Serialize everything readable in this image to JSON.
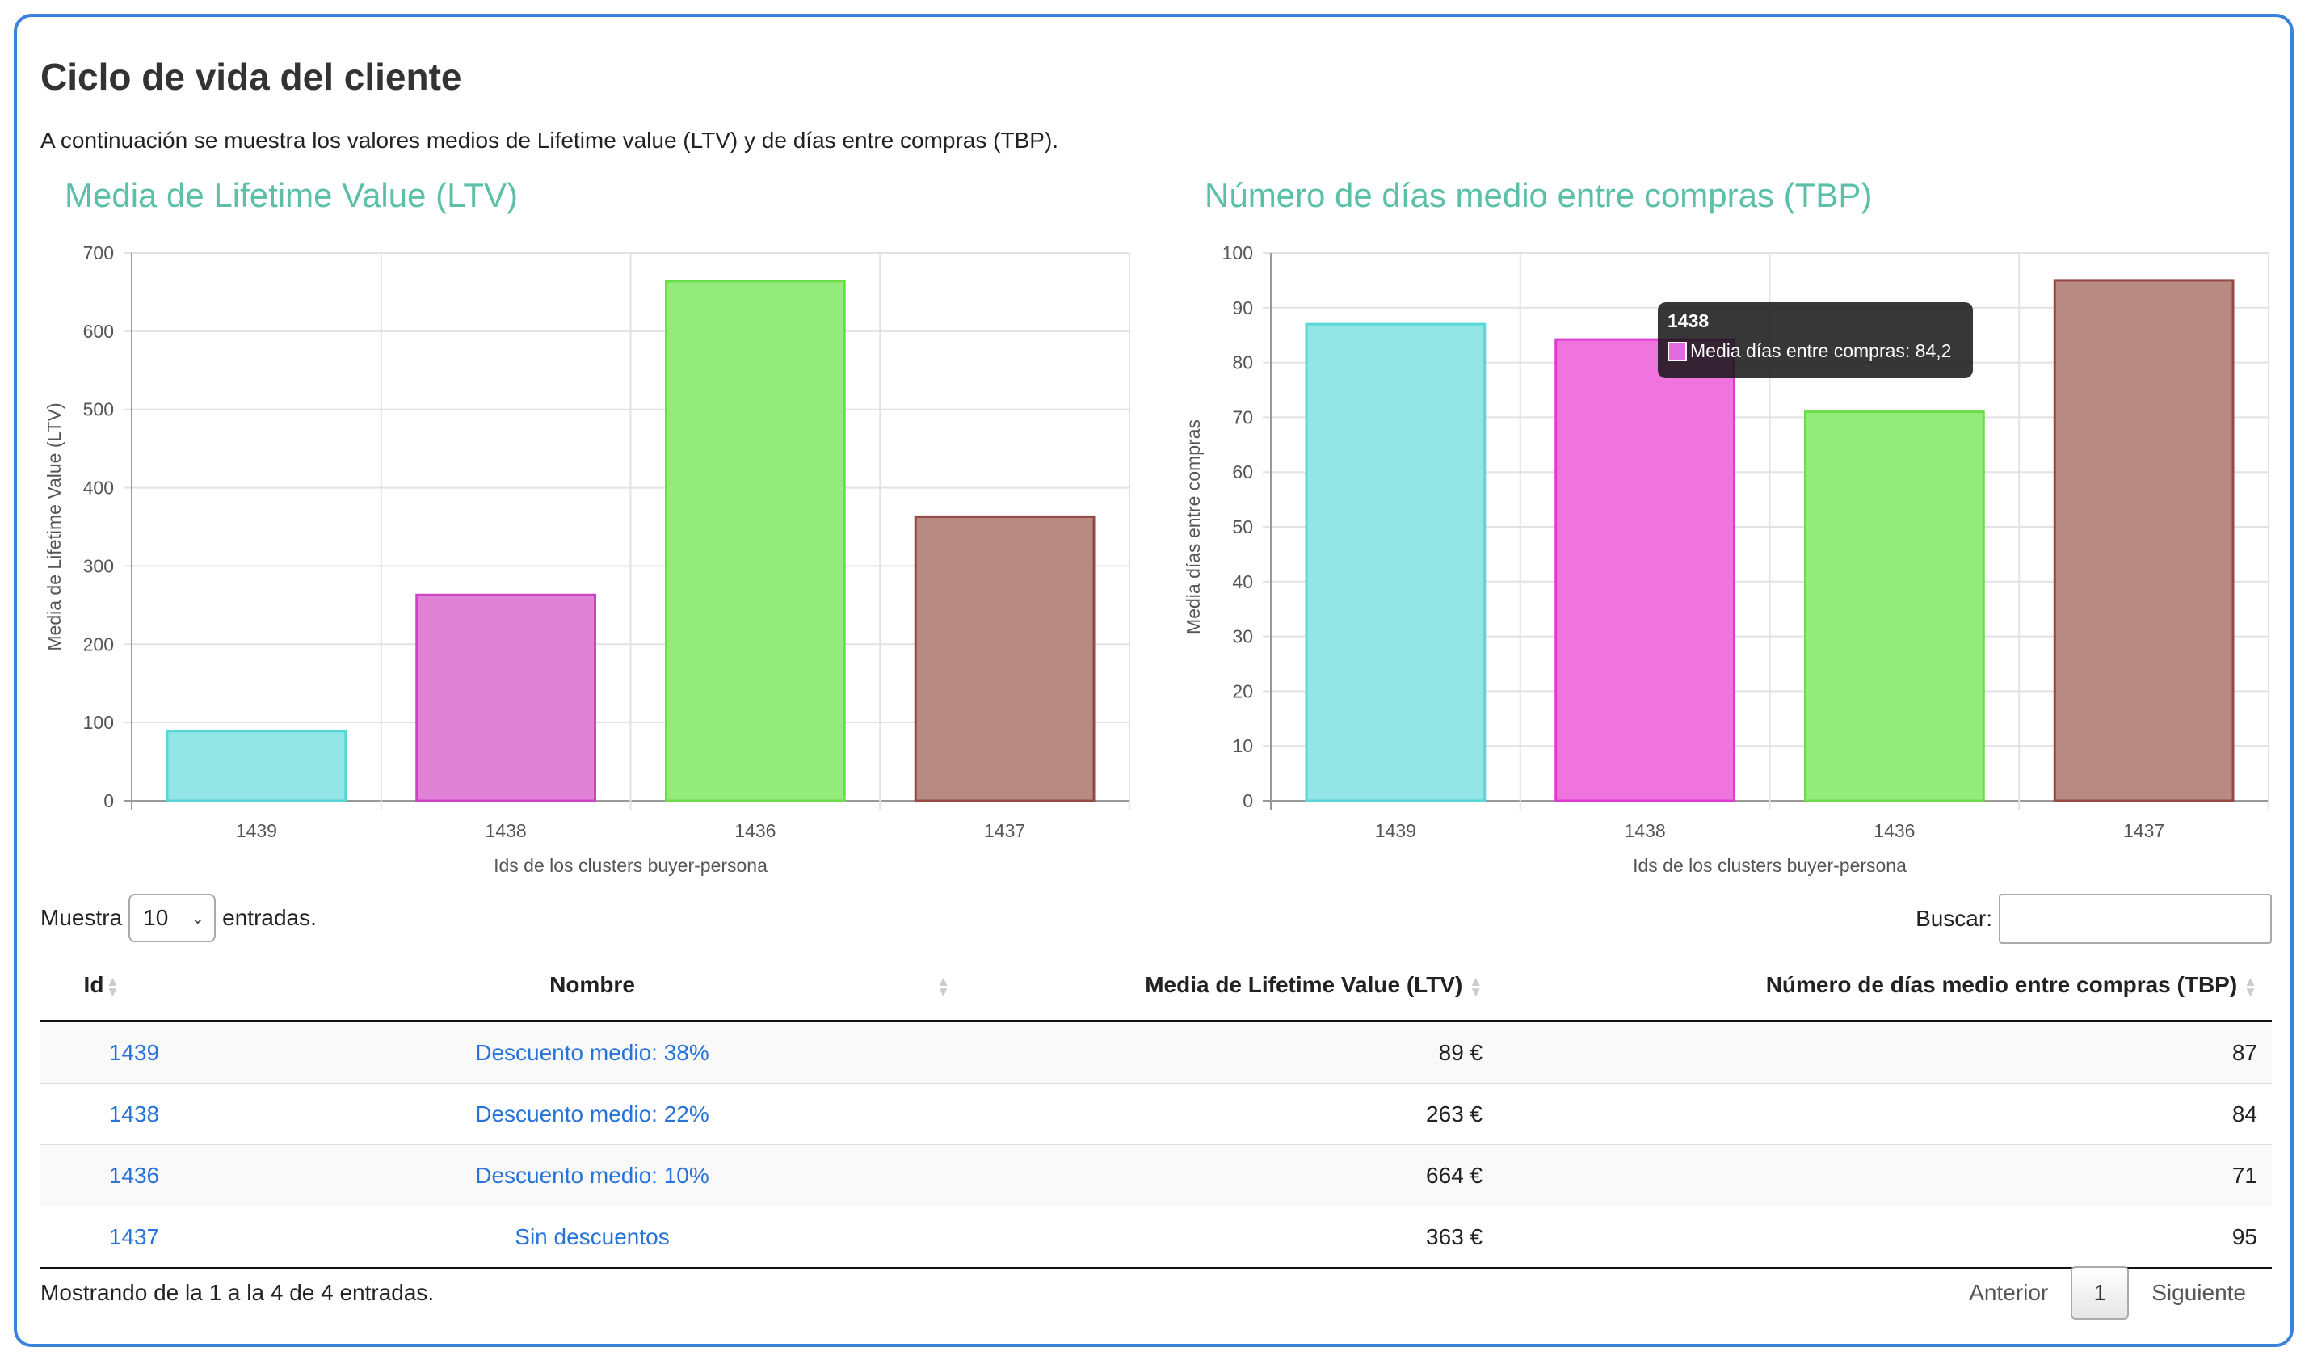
{
  "header": {
    "title": "Ciclo de vida del cliente",
    "intro": "A continuación se muestra los valores medios de Lifetime value (LTV) y de días entre compras (TBP)."
  },
  "charts": {
    "ltv_title": "Media de Lifetime Value (LTV)",
    "tbp_title": "Número de días medio entre compras (TBP)"
  },
  "chart_data": [
    {
      "type": "bar",
      "title": "Media de Lifetime Value (LTV)",
      "categories": [
        "1439",
        "1438",
        "1436",
        "1437"
      ],
      "values": [
        89,
        263,
        664,
        363
      ],
      "colors": [
        "#93e6e6",
        "#e083d7",
        "#93eb7b",
        "#b98a83"
      ],
      "borders": [
        "#59d6d6",
        "#cc44c4",
        "#6bdc4a",
        "#934a43"
      ],
      "xlabel": "Ids de los clusters buyer-persona",
      "ylabel": "Media de Lifetime Value (LTV)",
      "ylim": [
        0,
        700
      ],
      "yticks": [
        0,
        100,
        200,
        300,
        400,
        500,
        600,
        700
      ],
      "grid": true
    },
    {
      "type": "bar",
      "title": "Número de días medio entre compras (TBP)",
      "categories": [
        "1439",
        "1438",
        "1436",
        "1437"
      ],
      "values": [
        87,
        84.2,
        71,
        95
      ],
      "colors": [
        "#93e6e6",
        "#ef74dd",
        "#93eb7b",
        "#b98a83"
      ],
      "borders": [
        "#59d6d6",
        "#df3ad2",
        "#6bdc4a",
        "#934a43"
      ],
      "xlabel": "Ids de los clusters buyer-persona",
      "ylabel": "Media días entre compras",
      "ylim": [
        0,
        100
      ],
      "yticks": [
        0,
        10,
        20,
        30,
        40,
        50,
        60,
        70,
        80,
        90,
        100
      ],
      "grid": true
    }
  ],
  "tooltip": {
    "title": "1438",
    "label": "Media días entre compras: 84,2"
  },
  "table_controls": {
    "show_prefix": "Muestra",
    "show_value": "10",
    "show_suffix": "entradas.",
    "search_label": "Buscar:",
    "search_value": ""
  },
  "table": {
    "headers": [
      "Id",
      "Nombre",
      "Media de Lifetime Value (LTV)",
      "Número de días medio entre compras (TBP)"
    ],
    "rows": [
      {
        "id": "1439",
        "name": "Descuento medio: 38%",
        "ltv": "89 €",
        "tbp": "87"
      },
      {
        "id": "1438",
        "name": "Descuento medio: 22%",
        "ltv": "263 €",
        "tbp": "84"
      },
      {
        "id": "1436",
        "name": "Descuento medio: 10%",
        "ltv": "664 €",
        "tbp": "71"
      },
      {
        "id": "1437",
        "name": "Sin descuentos",
        "ltv": "363 €",
        "tbp": "95"
      }
    ]
  },
  "footer": {
    "info": "Mostrando de la 1 a la 4 de 4 entradas.",
    "prev": "Anterior",
    "page": "1",
    "next": "Siguiente"
  }
}
